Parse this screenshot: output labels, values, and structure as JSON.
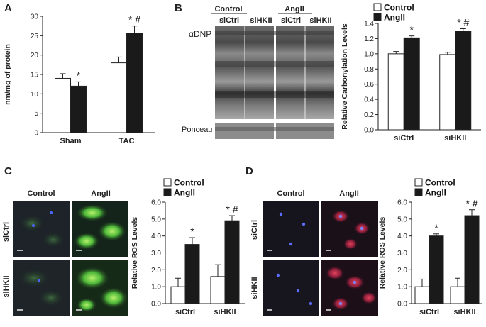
{
  "panels": {
    "A": "A",
    "B": "B",
    "C": "C",
    "D": "D"
  },
  "blot": {
    "group_control": "Control",
    "group_angii": "AngII",
    "lanes": [
      "siCtrl",
      "siHKII",
      "siCtrl",
      "siHKII"
    ],
    "dnp_label": "αDNP",
    "ponceau_label": "Ponceau"
  },
  "micrographs": {
    "C": {
      "col_left": "Control",
      "col_right": "AngII",
      "row_top": "siCtrl",
      "row_bottom": "siHKII"
    },
    "D": {
      "col_left": "Control",
      "col_right": "AngII",
      "row_top": "siCtrl",
      "row_bottom": "siHKII"
    }
  },
  "chart_data": [
    {
      "panel": "A",
      "type": "bar",
      "categories": [
        "Sham",
        "TAC"
      ],
      "series": [
        {
          "name": "",
          "fill": "#ffffff",
          "values": [
            14.0,
            18.0
          ],
          "errors": [
            1.2,
            1.5
          ]
        },
        {
          "name": "",
          "fill": "#1a1a1a",
          "values": [
            12.0,
            25.7
          ],
          "errors": [
            1.1,
            1.8
          ]
        }
      ],
      "annotations": [
        [
          "",
          ""
        ],
        [
          "*",
          "* #"
        ]
      ],
      "ylabel": "nm/mg of protein",
      "ylim": [
        0,
        30
      ],
      "yticks": [
        0,
        5,
        10,
        15,
        20,
        25,
        30
      ],
      "yticklabels": [
        "0",
        "5",
        "10",
        "15",
        "20",
        "25",
        "30"
      ],
      "legend": null
    },
    {
      "panel": "B",
      "type": "bar",
      "categories": [
        "siCtrl",
        "siHKII"
      ],
      "series": [
        {
          "name": "Control",
          "fill": "#ffffff",
          "values": [
            1.0,
            0.99
          ],
          "errors": [
            0.03,
            0.03
          ]
        },
        {
          "name": "AngII",
          "fill": "#1a1a1a",
          "values": [
            1.21,
            1.3
          ],
          "errors": [
            0.025,
            0.03
          ]
        }
      ],
      "annotations": [
        [
          "",
          ""
        ],
        [
          "*",
          "* #"
        ]
      ],
      "ylabel": "Relative Carbonylation Levels",
      "ylim": [
        0,
        1.4
      ],
      "yticks": [
        0,
        0.2,
        0.4,
        0.6,
        0.8,
        1.0,
        1.2,
        1.4
      ],
      "yticklabels": [
        "0.0",
        "0.2",
        "0.4",
        "0.6",
        "0.8",
        "1.0",
        "1.2",
        "1.4"
      ],
      "legend": "top"
    },
    {
      "panel": "C",
      "type": "bar",
      "categories": [
        "siCtrl",
        "siHKII"
      ],
      "series": [
        {
          "name": "Control",
          "fill": "#ffffff",
          "values": [
            1.0,
            1.6
          ],
          "errors": [
            0.5,
            0.7
          ]
        },
        {
          "name": "AngII",
          "fill": "#1a1a1a",
          "values": [
            3.5,
            4.9
          ],
          "errors": [
            0.4,
            0.3
          ]
        }
      ],
      "annotations": [
        [
          "",
          ""
        ],
        [
          "*",
          "* #"
        ]
      ],
      "ylabel": "Relative ROS Levels",
      "ylim": [
        0,
        6
      ],
      "yticks": [
        0,
        1,
        2,
        3,
        4,
        5,
        6
      ],
      "yticklabels": [
        "0.0",
        "1.0",
        "2.0",
        "3.0",
        "4.0",
        "5.0",
        "6.0"
      ],
      "legend": "top"
    },
    {
      "panel": "D",
      "type": "bar",
      "categories": [
        "siCtrl",
        "siHKII"
      ],
      "series": [
        {
          "name": "Control",
          "fill": "#ffffff",
          "values": [
            1.0,
            1.0
          ],
          "errors": [
            0.45,
            0.5
          ]
        },
        {
          "name": "AngII",
          "fill": "#1a1a1a",
          "values": [
            4.0,
            5.2
          ],
          "errors": [
            0.12,
            0.35
          ]
        }
      ],
      "annotations": [
        [
          "",
          ""
        ],
        [
          "*",
          "* #"
        ]
      ],
      "ylabel": "Relative ROS Levels",
      "ylim": [
        0,
        6
      ],
      "yticks": [
        0,
        1,
        2,
        3,
        4,
        5,
        6
      ],
      "yticklabels": [
        "0.0",
        "1.0",
        "2.0",
        "3.0",
        "4.0",
        "5.0",
        "6.0"
      ],
      "legend": "top"
    }
  ]
}
